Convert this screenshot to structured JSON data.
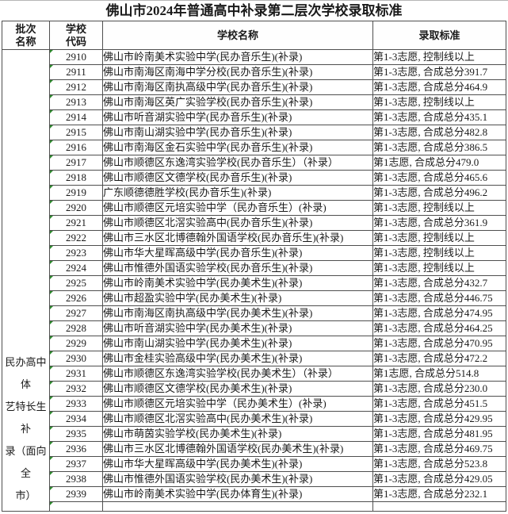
{
  "page": {
    "title": "佛山市2024年普通高中补录第二层次学校录取标准"
  },
  "table": {
    "headers": {
      "batch": "批次\n名称",
      "code": "学校\n代码",
      "school": "学校名称",
      "standard": "录取标准"
    },
    "batch_label": "民办高中体艺特长生补录（面向全市）",
    "batch_label_wrapped": "民办高中体\n艺特长生补\n录（面向全\n市）",
    "rows": [
      {
        "code": "2910",
        "school": "佛山市岭南美术实验中学(民办音乐生)(补录)",
        "standard": "第1-3志愿, 控制线以上"
      },
      {
        "code": "2911",
        "school": "佛山市南海区南海中学分校(民办音乐生)(补录)",
        "standard": "第1-3志愿, 合成总分391.7"
      },
      {
        "code": "2912",
        "school": "佛山市南海区南执高级中学(民办音乐生)(补录)",
        "standard": "第1-3志愿, 合成总分464.9"
      },
      {
        "code": "2913",
        "school": "佛山市南海区英广实验学校(民办音乐生)(补录)",
        "standard": "第1-3志愿, 控制线以上"
      },
      {
        "code": "2914",
        "school": "佛山市听音湖实验中学(民办音乐生)(补录)",
        "standard": "第1-3志愿, 合成总分435.1"
      },
      {
        "code": "2915",
        "school": "佛山市南山湖实验中学(民办音乐生)(补录)",
        "standard": "第1-3志愿, 合成总分482.8"
      },
      {
        "code": "2916",
        "school": "佛山市南海区金石实验中学(民办音乐生)(补录)",
        "standard": "第1-3志愿, 合成总分386.5"
      },
      {
        "code": "2917",
        "school": "佛山市顺德区东逸湾实验学校(民办音乐生）（补录）",
        "standard": "第1志愿, 合成总分479.0"
      },
      {
        "code": "2918",
        "school": "佛山市顺德区文德学校(民办音乐生)(补录)",
        "standard": "第1-3志愿, 合成总分465.6"
      },
      {
        "code": "2919",
        "school": "广东顺德德胜学校(民办音乐生)(补录)",
        "standard": "第1-3志愿, 合成总分496.2"
      },
      {
        "code": "2920",
        "school": "佛山市顺德区元培实验中学（民办音乐生）(补录)",
        "standard": "第1-3志愿, 控制线以上"
      },
      {
        "code": "2921",
        "school": "佛山市顺德区北滘实验高中(民办音乐生)(补录)",
        "standard": "第1-3志愿, 合成总分361.9"
      },
      {
        "code": "2922",
        "school": "佛山市三水区北博德翰外国语学校(民办音乐生)(补录)",
        "standard": "第1-3志愿, 控制线以上"
      },
      {
        "code": "2923",
        "school": "佛山市华大星晖高级中学(民办音乐生)(补录)",
        "standard": "第1-3志愿, 控制线以上"
      },
      {
        "code": "2924",
        "school": "佛山市惟德外国语实验学校(民办音乐生)(补录)",
        "standard": "第1-3志愿, 控制线以上"
      },
      {
        "code": "2925",
        "school": "佛山市岭南美术实验中学(民办美术生)(补录)",
        "standard": "第1-3志愿, 合成总分432.7"
      },
      {
        "code": "2926",
        "school": "佛山市超盈实验中学(民办美术生)(补录)",
        "standard": "第1-3志愿, 合成总分446.75"
      },
      {
        "code": "2927",
        "school": "佛山市南海区南执高级中学(民办美术生)(补录)",
        "standard": "第1-3志愿, 合成总分474.95"
      },
      {
        "code": "2928",
        "school": "佛山市听音湖实验中学(民办美术生)(补录)",
        "standard": "第1-3志愿, 合成总分464.25"
      },
      {
        "code": "2929",
        "school": "佛山市南山湖实验中学(民办美术生)(补录)",
        "standard": "第1-3志愿, 合成总分470.95"
      },
      {
        "code": "2930",
        "school": "佛山市金桂实验高级中学(民办美术生)(补录)",
        "standard": "第1-3志愿, 合成总分472.2"
      },
      {
        "code": "2931",
        "school": "佛山市顺德区东逸湾实验学校(民办美术生）（补录）",
        "standard": "第1志愿, 合成总分514.8"
      },
      {
        "code": "2932",
        "school": "佛山市顺德区文德学校(民办美术生)(补录)",
        "standard": "第1-3志愿, 合成总分230.0"
      },
      {
        "code": "2933",
        "school": "佛山市顺德区元培实验中学（民办美术生）(补录)",
        "standard": "第1-3志愿, 合成总分451.5"
      },
      {
        "code": "2934",
        "school": "佛山市顺德区北滘实验高中(民办美术生)(补录)",
        "standard": "第1-3志愿, 合成总分429.95"
      },
      {
        "code": "2935",
        "school": "佛山市萌茵实验学校(民办美术生)(补录)",
        "standard": "第1-3志愿, 合成总分481.95"
      },
      {
        "code": "2936",
        "school": "佛山市三水区北博德翰外国语学校(民办美术生)(补录)",
        "standard": "第1-3志愿, 合成总分469.75"
      },
      {
        "code": "2937",
        "school": "佛山市华大星晖高级中学(民办美术生)(补录)",
        "standard": "第1-3志愿, 合成总分523.8"
      },
      {
        "code": "2938",
        "school": "佛山市惟德外国语实验学校(民办美术生)(补录)",
        "standard": "第1-3志愿, 合成总分429.05"
      },
      {
        "code": "2939",
        "school": "佛山市岭南美术实验中学(民办体育生)(补录)",
        "standard": "第1-3志愿, 合成总分232.1"
      }
    ]
  },
  "icons": {
    "cell_indicator": "excel-green-triangle"
  },
  "colors": {
    "indicator_green": "#2e8b2e",
    "grid_line": "#4f4f4f",
    "text": "#1a1a1a",
    "background": "#ffffff"
  }
}
